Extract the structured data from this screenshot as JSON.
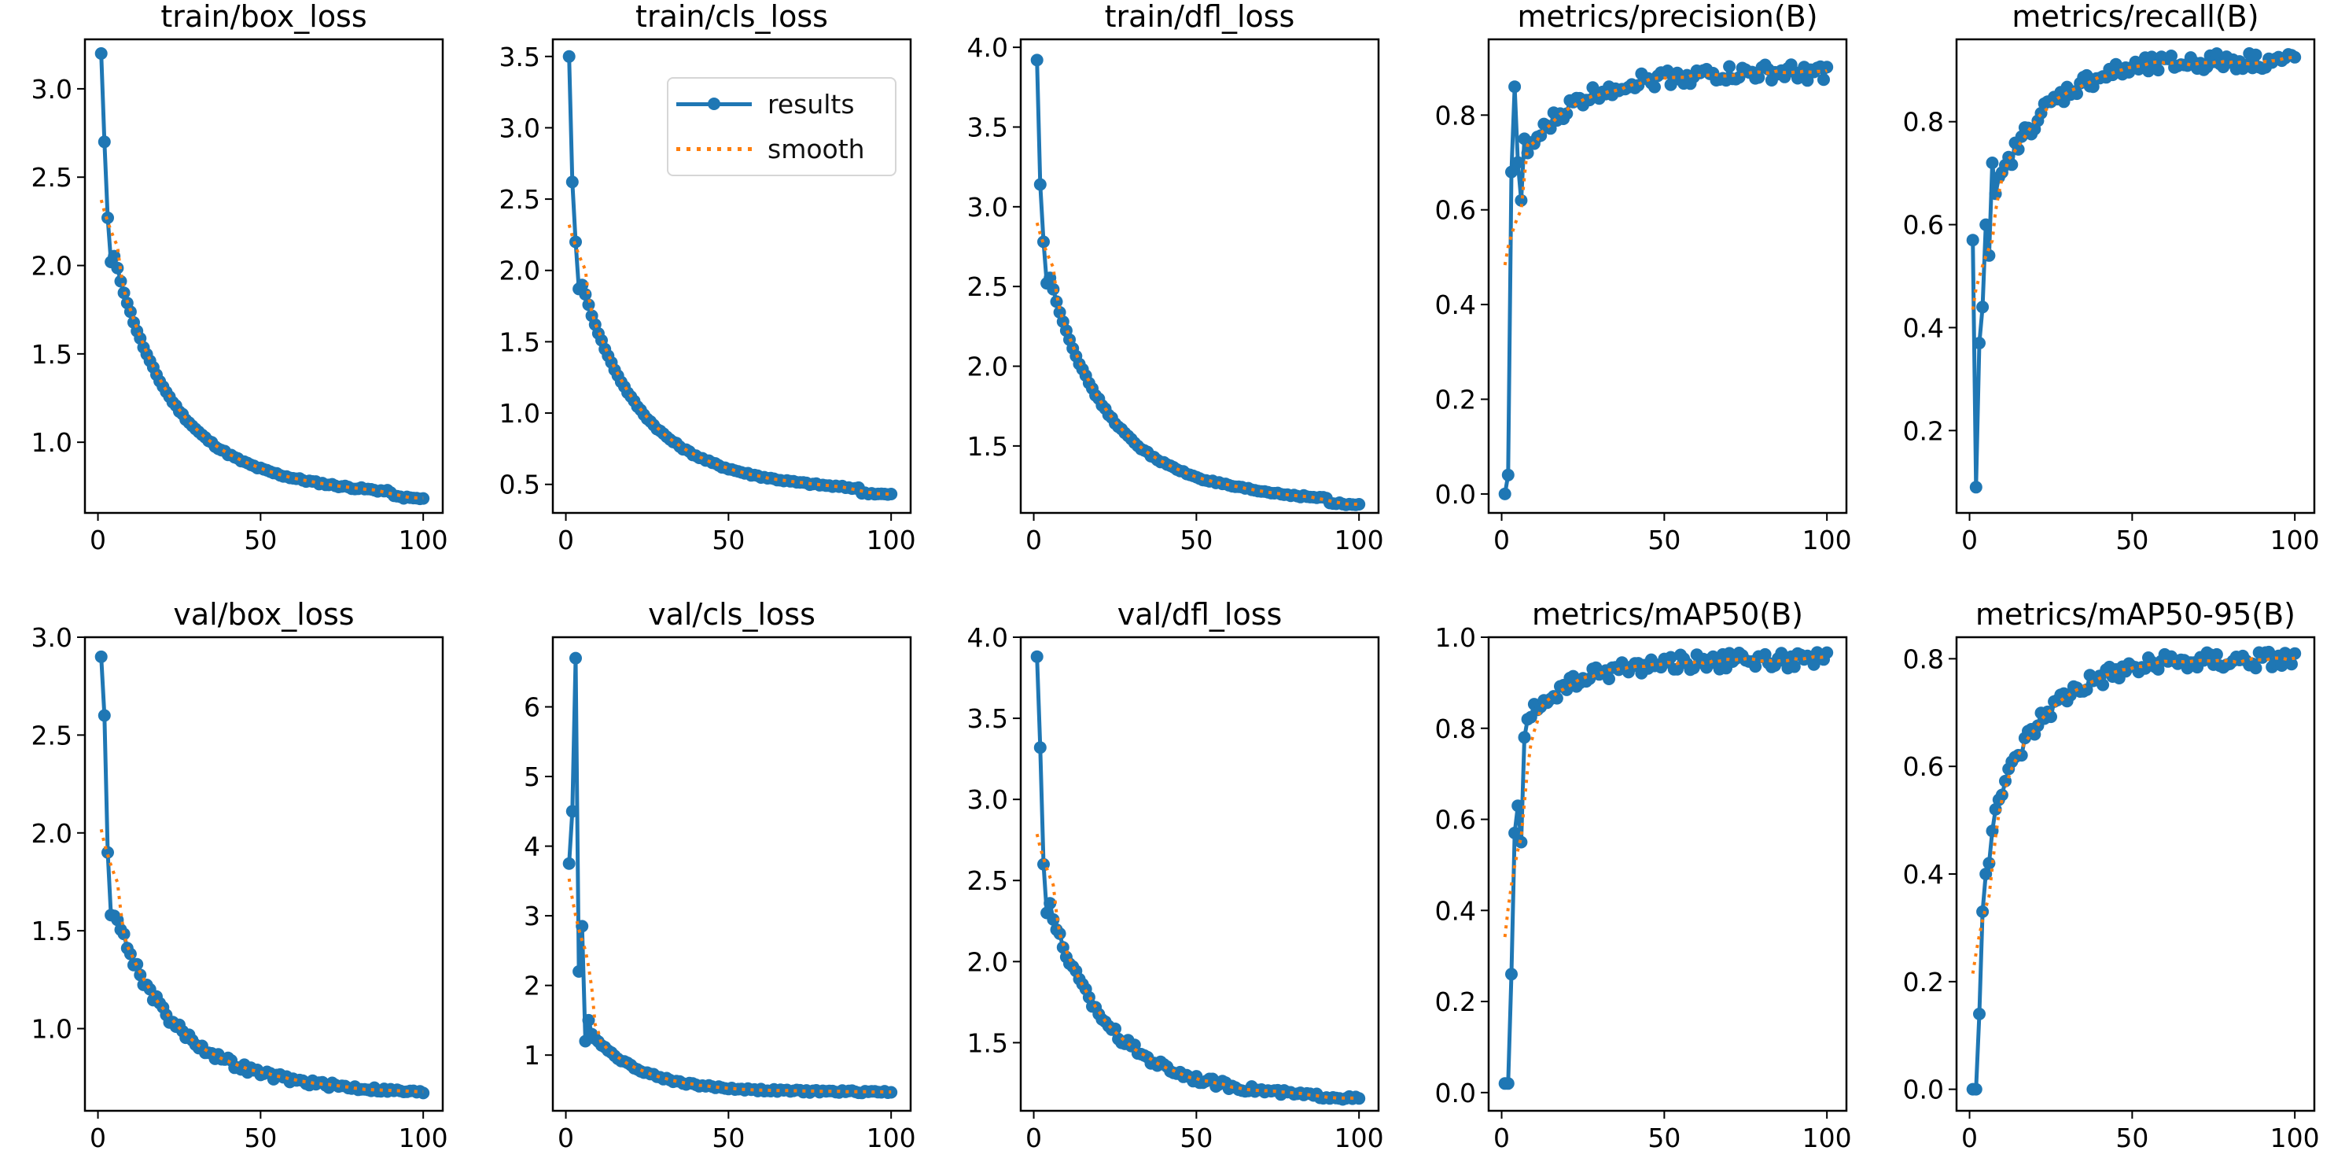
{
  "chart_data": [
    {
      "type": "line",
      "title": "train/box_loss",
      "xlim": [
        -4,
        106
      ],
      "ylim": [
        0.6,
        3.28
      ],
      "xticks": [
        0,
        50,
        100
      ],
      "yticks": [
        1.0,
        1.5,
        2.0,
        2.5,
        3.0
      ],
      "yticklabels": [
        "1.0",
        "1.5",
        "2.0",
        "2.5",
        "3.0"
      ],
      "curve": {
        "start": 3.2,
        "end": 0.7,
        "drops": [
          2.7,
          2.27,
          2.02
        ]
      }
    },
    {
      "type": "line",
      "title": "train/cls_loss",
      "xlim": [
        -4,
        106
      ],
      "ylim": [
        0.3,
        3.62
      ],
      "xticks": [
        0,
        50,
        100
      ],
      "yticks": [
        0.5,
        1.0,
        1.5,
        2.0,
        2.5,
        3.0,
        3.5
      ],
      "yticklabels": [
        "0.5",
        "1.0",
        "1.5",
        "2.0",
        "2.5",
        "3.0",
        "3.5"
      ],
      "curve": {
        "start": 3.5,
        "end": 0.45,
        "drops": [
          2.62,
          2.2,
          1.87
        ]
      }
    },
    {
      "type": "line",
      "title": "train/dfl_loss",
      "xlim": [
        -4,
        106
      ],
      "ylim": [
        1.08,
        4.05
      ],
      "xticks": [
        0,
        50,
        100
      ],
      "yticks": [
        1.5,
        2.0,
        2.5,
        3.0,
        3.5,
        4.0
      ],
      "yticklabels": [
        "1.5",
        "2.0",
        "2.5",
        "3.0",
        "3.5",
        "4.0"
      ],
      "curve": {
        "start": 3.92,
        "end": 1.15,
        "drops": [
          3.14,
          2.78,
          2.52
        ]
      }
    },
    {
      "type": "line",
      "title": "metrics/precision(B)",
      "xlim": [
        -4,
        106
      ],
      "ylim": [
        -0.04,
        0.96
      ],
      "xticks": [
        0,
        50,
        100
      ],
      "yticks": [
        0.0,
        0.2,
        0.4,
        0.6,
        0.8
      ],
      "yticklabels": [
        "0.0",
        "0.2",
        "0.4",
        "0.6",
        "0.8"
      ],
      "curve": {
        "start": 0.0,
        "end": 0.89,
        "early": [
          0.0,
          0.04,
          0.68,
          0.86,
          0.7,
          0.62,
          0.75,
          0.72
        ]
      }
    },
    {
      "type": "line",
      "title": "metrics/recall(B)",
      "xlim": [
        -4,
        106
      ],
      "ylim": [
        0.04,
        0.96
      ],
      "xticks": [
        0,
        50,
        100
      ],
      "yticks": [
        0.2,
        0.4,
        0.6,
        0.8
      ],
      "yticklabels": [
        "0.2",
        "0.4",
        "0.6",
        "0.8"
      ],
      "curve": {
        "start": 0.57,
        "end": 0.92,
        "early": [
          0.57,
          0.09,
          0.37,
          0.44,
          0.6,
          0.54,
          0.72,
          0.66
        ]
      }
    },
    {
      "type": "line",
      "title": "val/box_loss",
      "xlim": [
        -4,
        106
      ],
      "ylim": [
        0.58,
        3.0
      ],
      "xticks": [
        0,
        50,
        100
      ],
      "yticks": [
        1.0,
        1.5,
        2.0,
        2.5,
        3.0
      ],
      "yticklabels": [
        "1.0",
        "1.5",
        "2.0",
        "2.5",
        "3.0"
      ],
      "curve": {
        "start": 2.9,
        "end": 0.67,
        "drops": [
          2.6,
          1.9,
          1.58
        ]
      }
    },
    {
      "type": "line",
      "title": "val/cls_loss",
      "xlim": [
        -4,
        106
      ],
      "ylim": [
        0.2,
        7.0
      ],
      "xticks": [
        0,
        50,
        100
      ],
      "yticks": [
        1,
        2,
        3,
        4,
        5,
        6
      ],
      "yticklabels": [
        "1",
        "2",
        "3",
        "4",
        "5",
        "6"
      ],
      "curve": {
        "start": 3.75,
        "end": 0.47,
        "early": [
          3.75,
          4.5,
          6.7,
          2.2,
          2.85,
          1.2,
          1.5,
          1.3
        ]
      }
    },
    {
      "type": "line",
      "title": "val/dfl_loss",
      "xlim": [
        -4,
        106
      ],
      "ylim": [
        1.08,
        4.0
      ],
      "xticks": [
        0,
        50,
        100
      ],
      "yticks": [
        1.5,
        2.0,
        2.5,
        3.0,
        3.5,
        4.0
      ],
      "yticklabels": [
        "1.5",
        "2.0",
        "2.5",
        "3.0",
        "3.5",
        "4.0"
      ],
      "curve": {
        "start": 3.88,
        "end": 1.15,
        "drops": [
          3.32,
          2.6,
          2.3
        ]
      }
    },
    {
      "type": "line",
      "title": "metrics/mAP50(B)",
      "xlim": [
        -4,
        106
      ],
      "ylim": [
        -0.04,
        1.0
      ],
      "xticks": [
        0,
        50,
        100
      ],
      "yticks": [
        0.0,
        0.2,
        0.4,
        0.6,
        0.8,
        1.0
      ],
      "yticklabels": [
        "0.0",
        "0.2",
        "0.4",
        "0.6",
        "0.8",
        "1.0"
      ],
      "curve": {
        "start": 0.02,
        "end": 0.95,
        "early": [
          0.02,
          0.02,
          0.26,
          0.57,
          0.63,
          0.55,
          0.78,
          0.82
        ]
      }
    },
    {
      "type": "line",
      "title": "metrics/mAP50-95(B)",
      "xlim": [
        -4,
        106
      ],
      "ylim": [
        -0.04,
        0.84
      ],
      "xticks": [
        0,
        50,
        100
      ],
      "yticks": [
        0.0,
        0.2,
        0.4,
        0.6,
        0.8
      ],
      "yticklabels": [
        "0.0",
        "0.2",
        "0.4",
        "0.6",
        "0.8"
      ],
      "curve": {
        "start": 0.0,
        "end": 0.8,
        "early": [
          0.0,
          0.0,
          0.14,
          0.33,
          0.4,
          0.42,
          0.48,
          0.52
        ]
      }
    }
  ],
  "legend": {
    "results": "results",
    "smooth": "smooth"
  },
  "colors": {
    "results": "#1f77b4",
    "smooth": "#ff7f0e",
    "axes": "#000000"
  }
}
